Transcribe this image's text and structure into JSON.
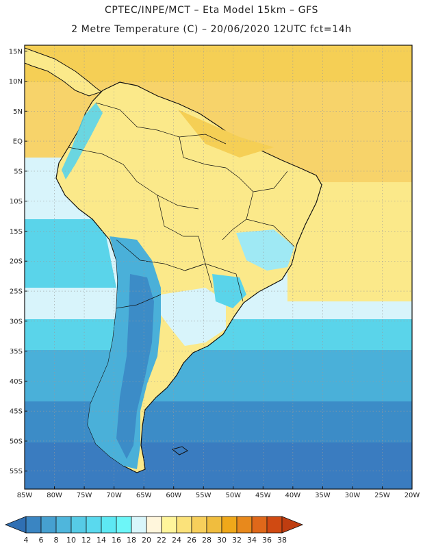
{
  "header": {
    "line1": "CPTEC/INPE/MCT –  Eta Model 15km – GFS",
    "line2": "2 Metre Temperature (C) – 20/06/2020 12UTC fct=14h"
  },
  "map": {
    "lat_labels": [
      "15N",
      "10N",
      "5N",
      "EQ",
      "5S",
      "10S",
      "15S",
      "20S",
      "25S",
      "30S",
      "35S",
      "40S",
      "45S",
      "50S",
      "55S"
    ],
    "lon_labels": [
      "85W",
      "80W",
      "75W",
      "70W",
      "65W",
      "60W",
      "55W",
      "50W",
      "45W",
      "40W",
      "35W",
      "30W",
      "25W",
      "20W"
    ],
    "lon_range": [
      -85,
      -20
    ],
    "lat_range": [
      -58,
      16
    ]
  },
  "colorbar": {
    "ticks": [
      "4",
      "6",
      "8",
      "10",
      "12",
      "14",
      "16",
      "18",
      "20",
      "22",
      "24",
      "26",
      "28",
      "30",
      "32",
      "34",
      "36",
      "38"
    ],
    "colors": [
      "#2f6fb3",
      "#3a85c2",
      "#46a0d0",
      "#4fb6dc",
      "#56cbe6",
      "#5ad9ee",
      "#5de8f3",
      "#6df6f8",
      "#d9f6fb",
      "#fff6dc",
      "#fff59b",
      "#fbe27a",
      "#f7cf5b",
      "#f0bd3e",
      "#efa81a",
      "#e8891c",
      "#df681a",
      "#d04a12",
      "#bf3d10"
    ]
  },
  "palette": {
    "ocean_deep": "#3a7cc0",
    "ocean_mid": "#46a0d0",
    "ocean_cyan": "#56cfe6",
    "tropical_ocean": "#f6d66b",
    "land": "#fbe98a",
    "coast": "#111111",
    "grid": "#9a9a9a"
  }
}
